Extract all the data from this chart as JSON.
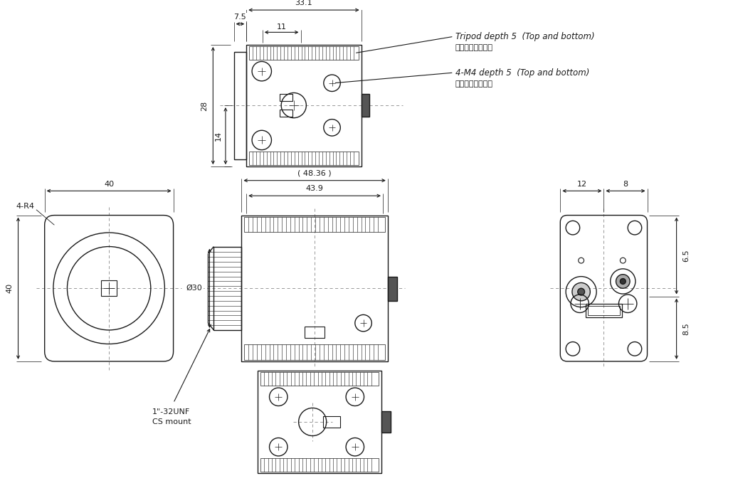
{
  "bg_color": "#ffffff",
  "lc": "#1a1a1a",
  "dc": "#1a1a1a",
  "annotations": {
    "tripod": "Tripod depth 5  (Top and bottom)",
    "tripod_jp": "（対面同一形状）",
    "m4": "4-M4 depth 5  (Top and bottom)",
    "m4_jp": "（対面同一形状）",
    "mount1": "1\"-32UNF",
    "mount2": "CS mount",
    "phi30": "Ø30",
    "corner": "4-R4"
  },
  "dims": {
    "top_w1": "7.5",
    "top_w2": "33.1",
    "top_w3": "11",
    "top_h1": "28",
    "top_h2": "14",
    "front_w1": "( 48.36 )",
    "front_w2": "43.9",
    "left_w": "40",
    "left_h": "40",
    "right_h1": "6.5",
    "right_h2": "8.5",
    "right_w1": "12",
    "right_w2": "8"
  }
}
